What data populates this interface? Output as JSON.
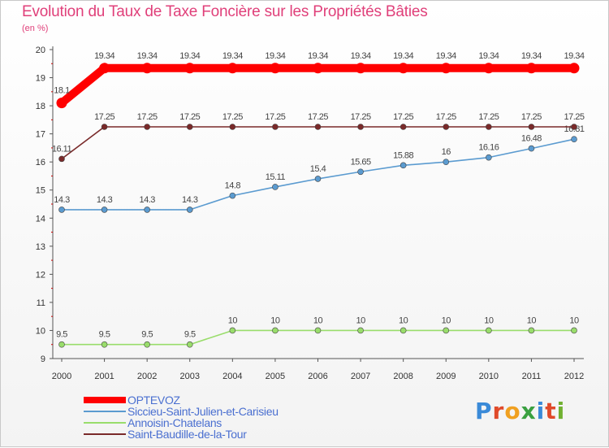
{
  "title": "Evolution du Taux de Taxe Foncière sur les Propriétés Bâties",
  "unit_label": "(en %)",
  "logo": {
    "text": "Proxiti",
    "letter_colors": [
      "#3a8ad8",
      "#e04a2a",
      "#f0a020",
      "#3aa040",
      "#3a8ad8",
      "#e04a2a",
      "#70b030"
    ]
  },
  "chart_data": {
    "type": "line",
    "title": "Evolution du Taux de Taxe Foncière sur les Propriétés Bâties",
    "ylabel": "(en %)",
    "xlabel": "",
    "ylim": [
      9,
      20
    ],
    "yticks": [
      9,
      10,
      11,
      12,
      13,
      14,
      15,
      16,
      17,
      18,
      19,
      20
    ],
    "categories": [
      "2000",
      "2001",
      "2002",
      "2003",
      "2004",
      "2005",
      "2006",
      "2007",
      "2008",
      "2009",
      "2010",
      "2011",
      "2012"
    ],
    "series": [
      {
        "name": "OPTEVOZ",
        "color": "#ff0000",
        "weight": "heavy",
        "values": [
          18.1,
          19.34,
          19.34,
          19.34,
          19.34,
          19.34,
          19.34,
          19.34,
          19.34,
          19.34,
          19.34,
          19.34,
          19.34
        ],
        "labels": [
          "18.1",
          "19.34",
          "19.34",
          "19.34",
          "19.34",
          "19.34",
          "19.34",
          "19.34",
          "19.34",
          "19.34",
          "19.34",
          "19.34",
          "19.34"
        ]
      },
      {
        "name": "Siccieu-Saint-Julien-et-Carisieu",
        "color": "#5b9bd0",
        "weight": "normal",
        "values": [
          14.3,
          14.3,
          14.3,
          14.3,
          14.8,
          15.11,
          15.4,
          15.65,
          15.88,
          16,
          16.16,
          16.48,
          16.81
        ],
        "labels": [
          "14.3",
          "14.3",
          "14.3",
          "14.3",
          "14.8",
          "15.11",
          "15.4",
          "15.65",
          "15.88",
          "16",
          "16.16",
          "16.48",
          "16.81"
        ]
      },
      {
        "name": "Annoisin-Chatelans",
        "color": "#99dd6b",
        "weight": "normal",
        "values": [
          9.5,
          9.5,
          9.5,
          9.5,
          10,
          10,
          10,
          10,
          10,
          10,
          10,
          10,
          10
        ],
        "labels": [
          "9.5",
          "9.5",
          "9.5",
          "9.5",
          "10",
          "10",
          "10",
          "10",
          "10",
          "10",
          "10",
          "10",
          "10"
        ]
      },
      {
        "name": "Saint-Baudille-de-la-Tour",
        "color": "#7a2a2a",
        "weight": "normal",
        "values": [
          16.11,
          17.25,
          17.25,
          17.25,
          17.25,
          17.25,
          17.25,
          17.25,
          17.25,
          17.25,
          17.25,
          17.25,
          17.25
        ],
        "labels": [
          "16.11",
          "17.25",
          "17.25",
          "17.25",
          "17.25",
          "17.25",
          "17.25",
          "17.25",
          "17.25",
          "17.25",
          "17.25",
          "17.25",
          "17.25"
        ]
      }
    ],
    "legend_position": "bottom-left",
    "grid": false
  }
}
